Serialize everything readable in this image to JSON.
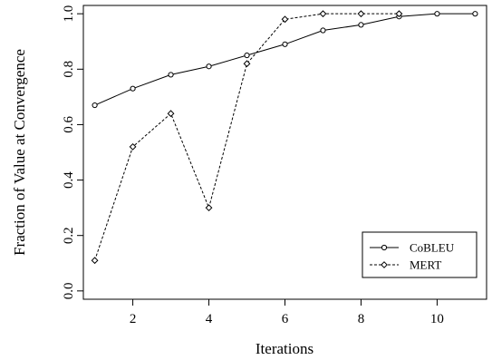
{
  "chart_data": {
    "type": "line",
    "xlabel": "Iterations",
    "ylabel": "Fraction of Value at Convergence",
    "xlim": [
      0.7,
      11.3
    ],
    "ylim": [
      -0.03,
      1.03
    ],
    "x_ticks": [
      2,
      4,
      6,
      8,
      10
    ],
    "y_ticks": [
      0.0,
      0.2,
      0.4,
      0.6,
      0.8,
      1.0
    ],
    "x_tick_labels": [
      "2",
      "4",
      "6",
      "8",
      "10"
    ],
    "y_tick_labels": [
      "0.0",
      "0.2",
      "0.4",
      "0.6",
      "0.8",
      "1.0"
    ],
    "legend_position": "bottom-right",
    "series": [
      {
        "name": "CoBLEU",
        "line_style": "solid",
        "marker": "circle",
        "color": "#000000",
        "x": [
          1,
          2,
          3,
          4,
          5,
          6,
          7,
          8,
          9,
          10,
          11
        ],
        "y": [
          0.67,
          0.73,
          0.78,
          0.81,
          0.85,
          0.89,
          0.94,
          0.96,
          0.99,
          1.0,
          1.0
        ]
      },
      {
        "name": "MERT",
        "line_style": "dashed",
        "marker": "diamond",
        "color": "#000000",
        "x": [
          1,
          2,
          3,
          4,
          5,
          6,
          7,
          8,
          9
        ],
        "y": [
          0.11,
          0.52,
          0.64,
          0.3,
          0.82,
          0.98,
          1.0,
          1.0,
          1.0
        ]
      }
    ]
  }
}
